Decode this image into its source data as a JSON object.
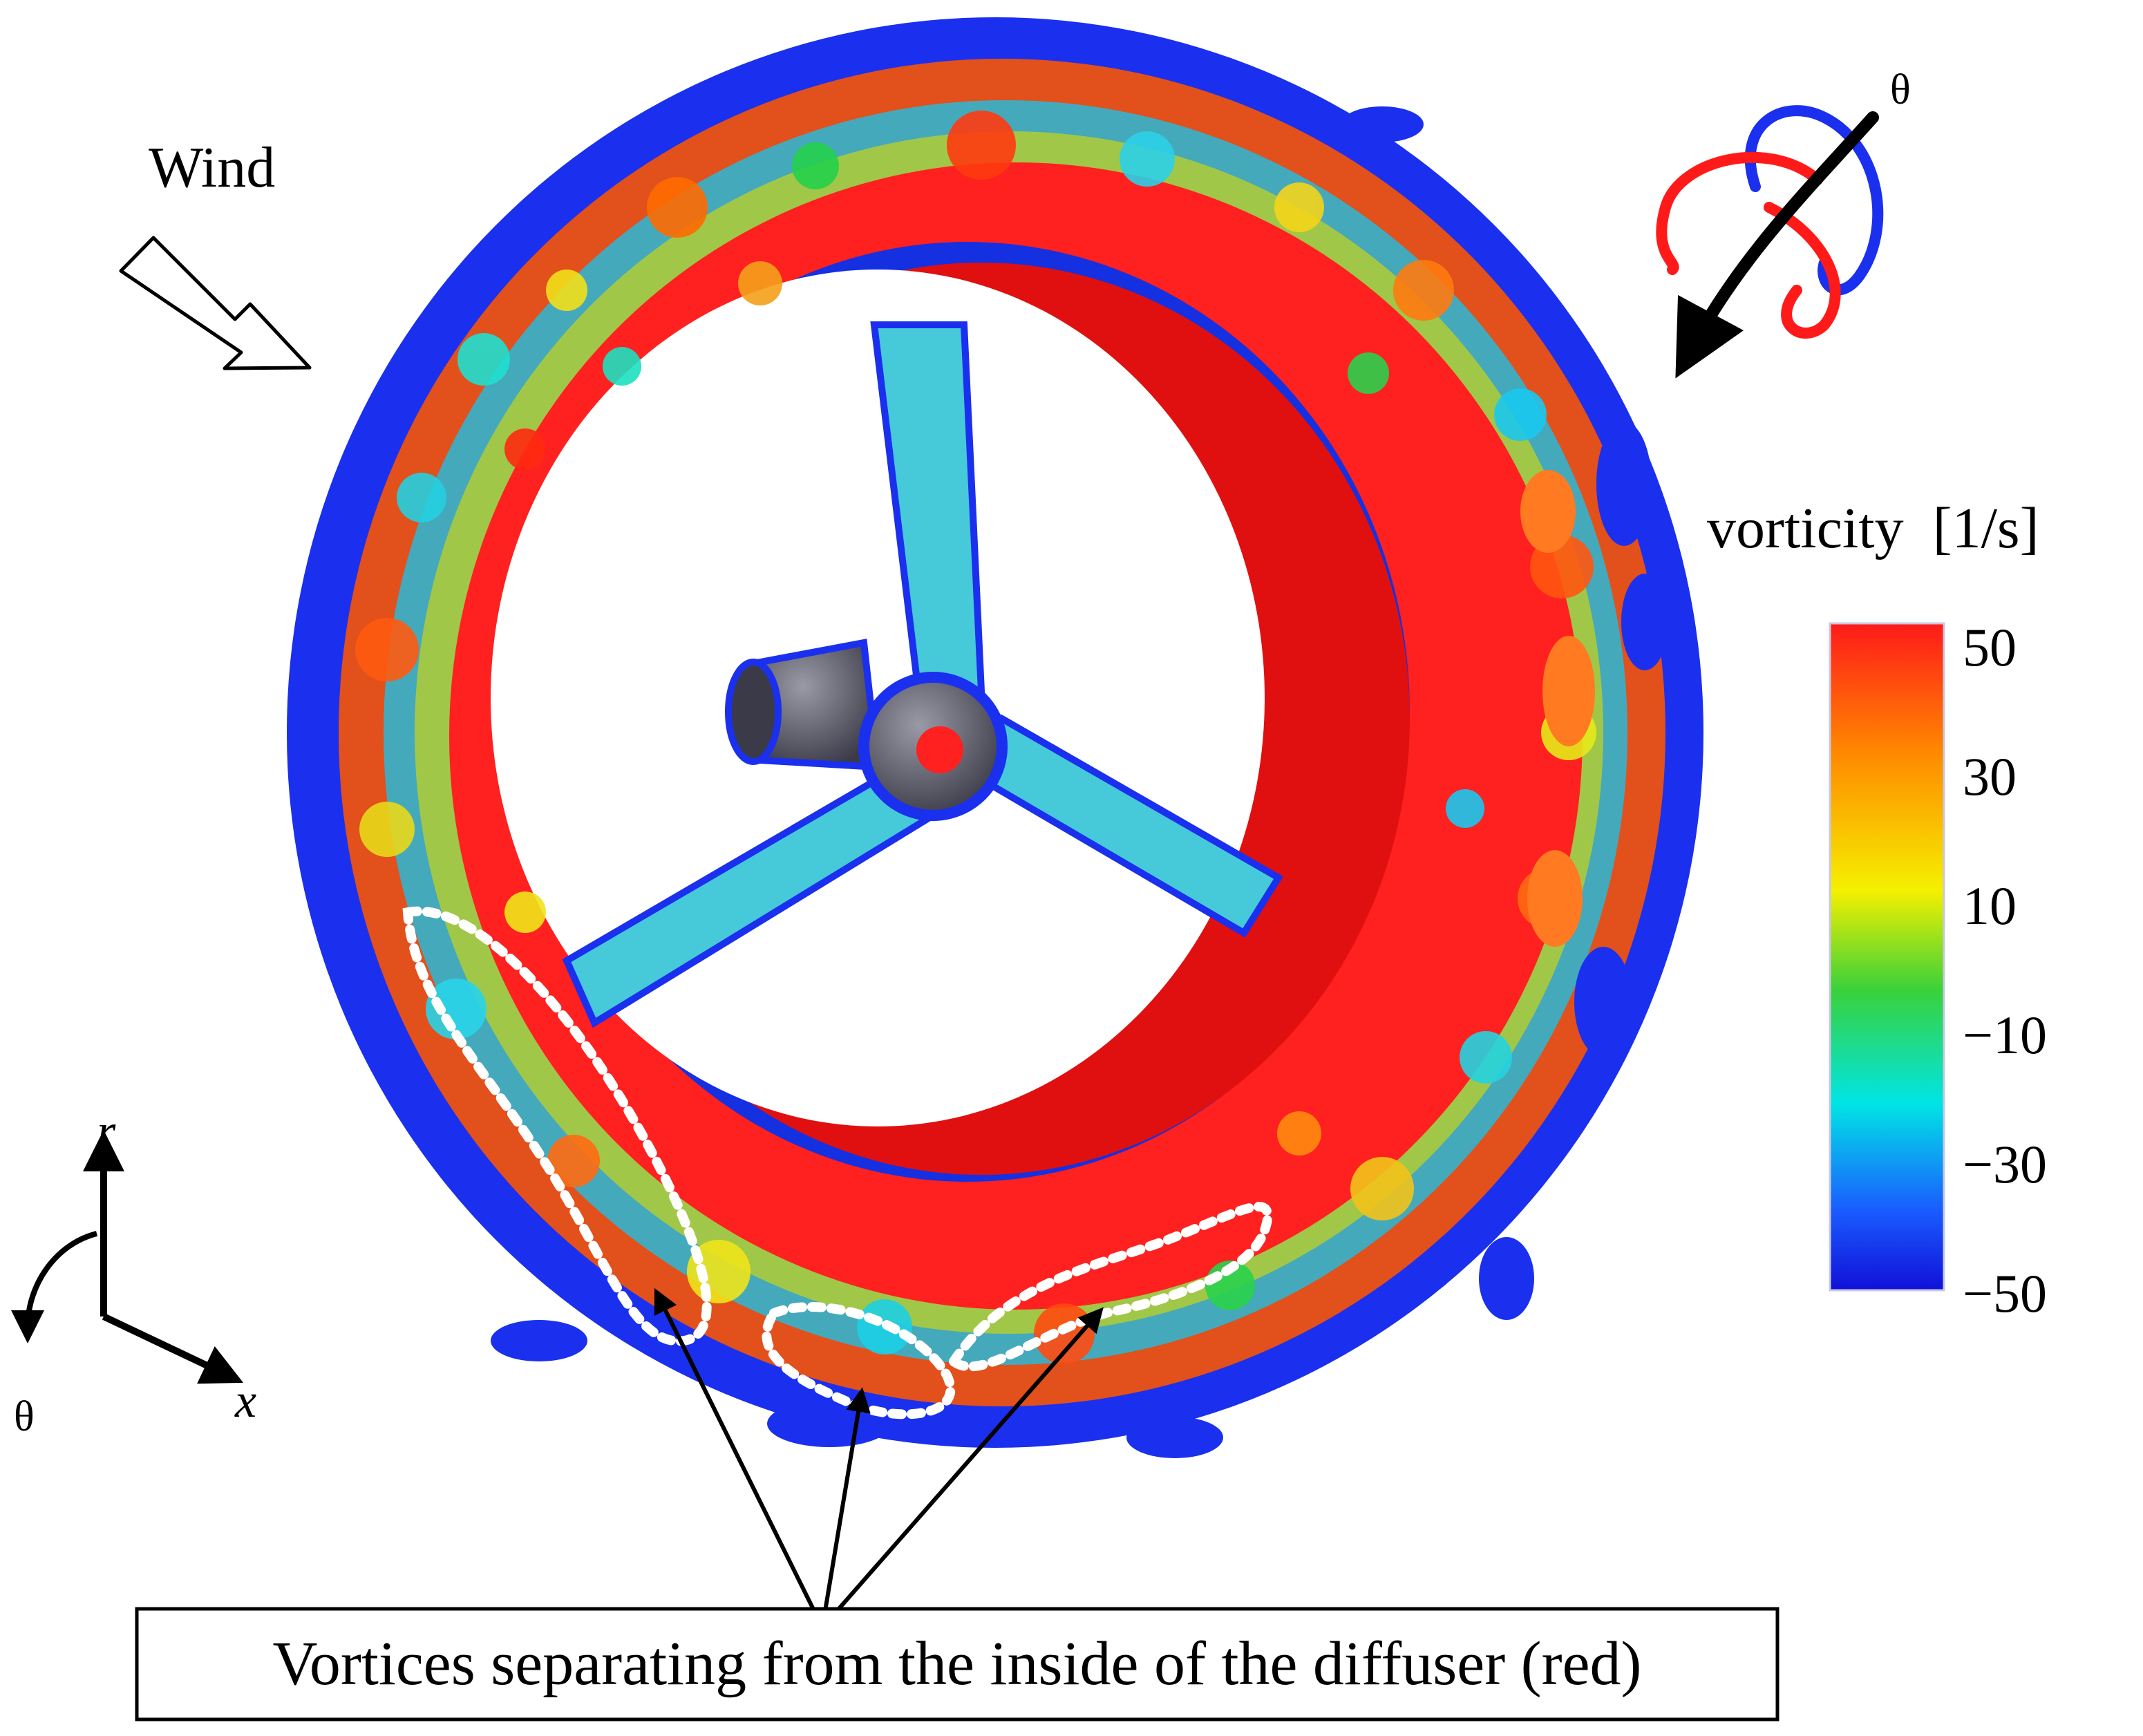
{
  "labels": {
    "wind": "Wind",
    "theta_top": "θ",
    "theta_axis": "θ",
    "r_axis": "r",
    "x_axis": "x",
    "callout": "Vortices separating from the inside of the diffuser (red)"
  },
  "colorbar": {
    "title": "vorticity  [1/s]",
    "ticks": [
      "50",
      "30",
      "10",
      "−10",
      "−30",
      "−50"
    ],
    "range": [
      -50,
      50
    ],
    "stops": [
      "#ff1a1a",
      "#ff8c00",
      "#f5f000",
      "#3ad13a",
      "#00e5e5",
      "#1a5cff",
      "#1010d8"
    ]
  },
  "colors": {
    "positive_vortex": "#ff2020",
    "negative_vortex": "#1020ff",
    "rotation_arrow": "#000000",
    "dotted_outline": "#ffffff"
  },
  "icons": [
    "wind-arrow-icon",
    "rotation-direction-icon",
    "axis-triad-icon"
  ]
}
